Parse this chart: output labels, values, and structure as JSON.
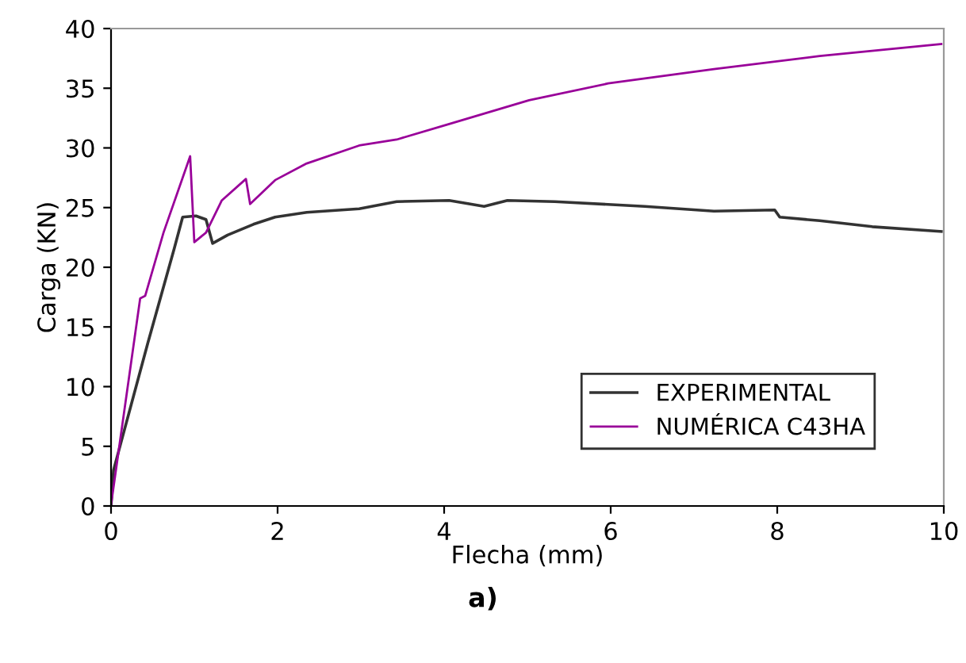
{
  "chart_data": {
    "type": "line",
    "xlabel": "Flecha (mm)",
    "ylabel": "Carga (KN)",
    "annotations": [
      "a)"
    ],
    "xlim": [
      0,
      10
    ],
    "ylim": [
      0,
      40
    ],
    "xticks": [
      0,
      2,
      4,
      6,
      8,
      10
    ],
    "yticks": [
      0,
      5,
      10,
      15,
      20,
      25,
      30,
      35,
      40
    ],
    "grid": false,
    "legend": "bottom right",
    "marker": "none",
    "line_style": "solid",
    "series": [
      {
        "name": "EXPERIMENTAL",
        "color": "#333333",
        "x": [
          0,
          0.03,
          0.44,
          0.76,
          0.86,
          1.02,
          1.14,
          1.22,
          1.4,
          1.71,
          1.97,
          2.35,
          2.98,
          3.43,
          4.06,
          4.48,
          4.76,
          5.33,
          6.41,
          7.24,
          7.97,
          8.03,
          8.51,
          9.14,
          9.97
        ],
        "values": [
          0,
          3,
          13.6,
          21.6,
          24.2,
          24.3,
          24.0,
          22.0,
          22.7,
          23.6,
          24.2,
          24.6,
          24.9,
          25.5,
          25.6,
          25.1,
          25.6,
          25.5,
          25.1,
          24.7,
          24.8,
          24.2,
          23.9,
          23.4,
          23.0
        ]
      },
      {
        "name": "NUMÉRICA C43HA",
        "color": "#990099",
        "x": [
          0,
          0.35,
          0.41,
          0.63,
          0.95,
          1.0,
          1.14,
          1.33,
          1.62,
          1.67,
          1.97,
          2.35,
          2.98,
          3.43,
          4.06,
          5.02,
          5.97,
          7.24,
          8.51,
          9.97
        ],
        "values": [
          0.1,
          17.4,
          17.6,
          22.9,
          29.3,
          22.1,
          22.9,
          25.6,
          27.4,
          25.3,
          27.3,
          28.7,
          30.2,
          30.7,
          32.0,
          34.0,
          35.4,
          36.6,
          37.7,
          38.7
        ]
      }
    ]
  }
}
